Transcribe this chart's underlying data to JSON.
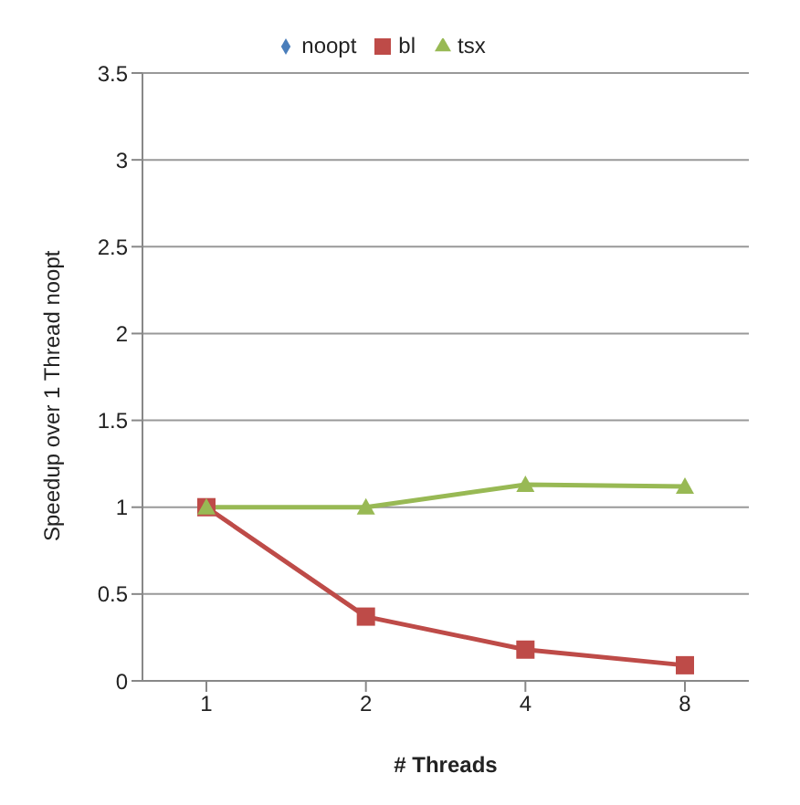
{
  "chart_data": {
    "type": "line",
    "xlabel": "# Threads",
    "ylabel": "Speedup over 1 Thread noopt",
    "categories": [
      "1",
      "2",
      "4",
      "8"
    ],
    "series": [
      {
        "name": "noopt",
        "color": "#4a7ebb",
        "marker": "diamond",
        "values": [
          null,
          null,
          null,
          null
        ]
      },
      {
        "name": "bl",
        "color": "#be4b48",
        "marker": "square",
        "values": [
          1,
          0.37,
          0.18,
          0.09
        ]
      },
      {
        "name": "tsx",
        "color": "#98b954",
        "marker": "triangle",
        "values": [
          1,
          1,
          1.13,
          1.12
        ]
      }
    ],
    "ylim": [
      0,
      3.5
    ],
    "yticks": [
      0,
      0.5,
      1,
      1.5,
      2,
      2.5,
      3,
      3.5
    ],
    "grid": "y",
    "legend": "top"
  }
}
